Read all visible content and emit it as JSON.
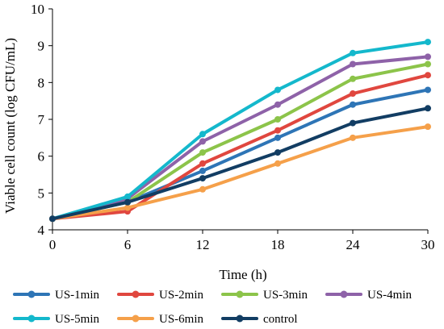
{
  "chart_data": {
    "type": "line",
    "xlabel": "Time (h)",
    "ylabel": "Viable cell count (log CFU/mL)",
    "x": [
      0,
      6,
      12,
      18,
      24,
      30
    ],
    "xlim": [
      0,
      30
    ],
    "ylim": [
      4,
      10
    ],
    "xticks": [
      0,
      6,
      12,
      18,
      24,
      30
    ],
    "yticks": [
      4,
      5,
      6,
      7,
      8,
      9,
      10
    ],
    "grid": false,
    "legend_position": "bottom",
    "series": [
      {
        "name": "US-1min",
        "color": "#2e75b6",
        "values": [
          4.3,
          4.75,
          5.6,
          6.5,
          7.4,
          7.8
        ]
      },
      {
        "name": "US-2min",
        "color": "#e0473f",
        "values": [
          4.3,
          4.5,
          5.8,
          6.7,
          7.7,
          8.2
        ]
      },
      {
        "name": "US-3min",
        "color": "#8cc44a",
        "values": [
          4.3,
          4.75,
          6.1,
          7.0,
          8.1,
          8.5
        ]
      },
      {
        "name": "US-4min",
        "color": "#8e62a8",
        "values": [
          4.3,
          4.85,
          6.4,
          7.4,
          8.5,
          8.7
        ]
      },
      {
        "name": "US-5min",
        "color": "#14b8cc",
        "values": [
          4.3,
          4.9,
          6.6,
          7.8,
          8.8,
          9.1
        ]
      },
      {
        "name": "US-6min",
        "color": "#f5a04a",
        "values": [
          4.3,
          4.6,
          5.1,
          5.8,
          6.5,
          6.8
        ]
      },
      {
        "name": "control",
        "color": "#123d63",
        "values": [
          4.3,
          4.75,
          5.4,
          6.1,
          6.9,
          7.3
        ]
      }
    ]
  }
}
